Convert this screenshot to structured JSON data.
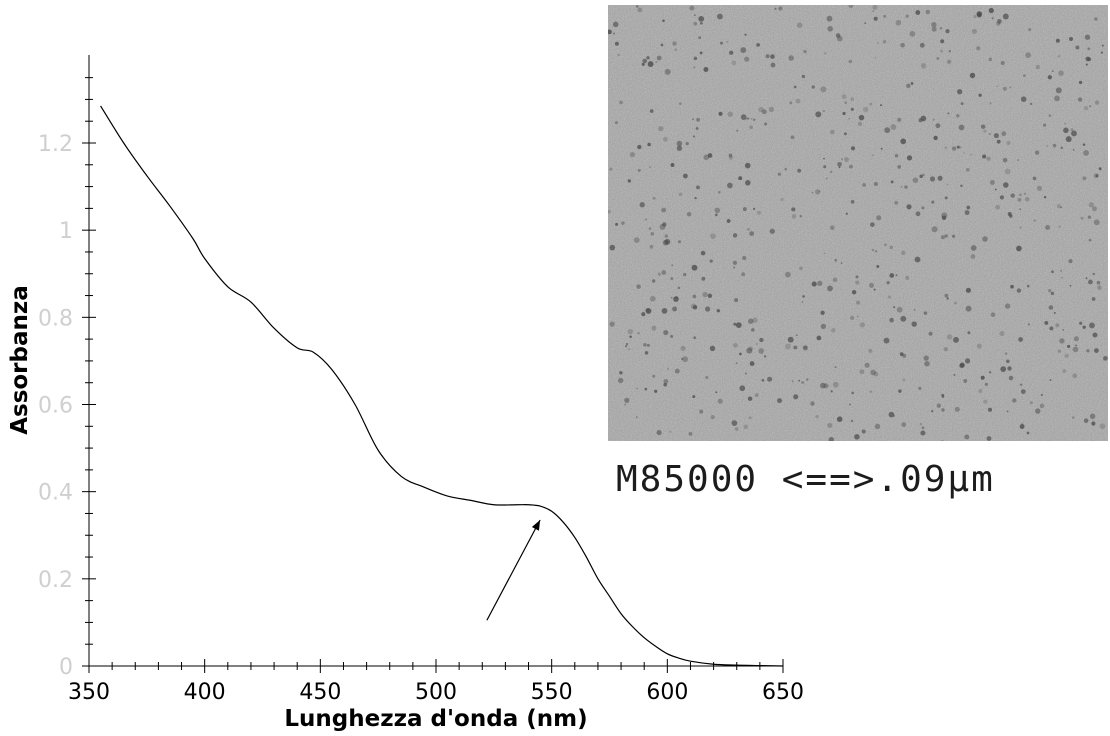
{
  "chart_data": {
    "type": "line",
    "title": "",
    "xlabel": "Lunghezza d'onda (nm)",
    "ylabel": "Assorbanza",
    "xlim": [
      350,
      650
    ],
    "ylim": [
      0,
      1.4
    ],
    "x_ticks": [
      "350",
      "400",
      "450",
      "500",
      "550",
      "600",
      "650"
    ],
    "y_ticks": [
      "0",
      "0.2",
      "0.4",
      "0.6",
      "0.8",
      "1",
      "1.2"
    ],
    "grid": false,
    "line_color": "#000000",
    "series": [
      {
        "x": [
          355,
          365,
          375,
          385,
          395,
          400,
          410,
          420,
          430,
          440,
          447,
          455,
          465,
          475,
          485,
          495,
          505,
          515,
          525,
          535,
          540,
          545,
          550,
          555,
          560,
          565,
          570,
          575,
          580,
          585,
          590,
          595,
          600,
          605,
          610,
          620,
          630,
          640,
          650
        ],
        "y": [
          1.285,
          1.2,
          1.125,
          1.055,
          0.98,
          0.935,
          0.87,
          0.835,
          0.775,
          0.73,
          0.72,
          0.68,
          0.6,
          0.495,
          0.435,
          0.41,
          0.39,
          0.38,
          0.37,
          0.37,
          0.37,
          0.367,
          0.355,
          0.33,
          0.295,
          0.25,
          0.2,
          0.16,
          0.12,
          0.09,
          0.065,
          0.045,
          0.028,
          0.018,
          0.011,
          0.004,
          0.002,
          0.001,
          0.0
        ]
      }
    ],
    "annotation": {
      "type": "arrow",
      "from": [
        522,
        0.105
      ],
      "to": [
        545,
        0.335
      ]
    }
  },
  "inset": {
    "caption": "M85000 <==>.09μm",
    "background": "#a2a2a2"
  }
}
